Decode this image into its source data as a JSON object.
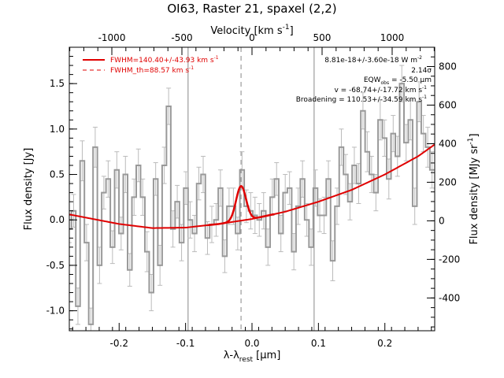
{
  "chart_data": {
    "type": "line",
    "title": "OI63, Raster 21, spaxel (2,2)",
    "xlabel": "λ-λ_rest [μm]",
    "xlabel_parts": {
      "lambda": "λ-λ",
      "sub": "rest",
      "unit": " [",
      "mu": "μ",
      "unit_end": "m]"
    },
    "ylabel_left": "Flux density [Jy]",
    "ylabel_right": "Flux density [MJy sr",
    "ylabel_right_sup": "-1",
    "ylabel_right_end": "]",
    "top_axis_label": "Velocity [km s",
    "top_axis_label_sup": "-1",
    "top_axis_label_end": "]",
    "xlim": [
      -0.275,
      0.275
    ],
    "ylim": [
      -1.22,
      1.9
    ],
    "right_ylim": [
      -570,
      900
    ],
    "vel_per_um": 4740,
    "x_ticks": [
      -0.2,
      -0.1,
      0.0,
      0.1,
      0.2
    ],
    "x_tick_labels": [
      "-0.2",
      "-0.1",
      "0.0",
      "0.1",
      "0.2"
    ],
    "y_ticks": [
      -1.0,
      -0.5,
      0.0,
      0.5,
      1.0,
      1.5
    ],
    "y_tick_labels": [
      "-1.0",
      "-0.5",
      "0.0",
      "0.5",
      "1.0",
      "1.5"
    ],
    "right_ticks": [
      -400,
      -200,
      0,
      200,
      400,
      600,
      800
    ],
    "right_tick_labels": [
      "-400",
      "-200",
      "0",
      "200",
      "400",
      "600",
      "800"
    ],
    "top_ticks": [
      -1000,
      -500,
      0,
      500,
      1000
    ],
    "top_tick_labels": [
      "-1000",
      "-500",
      "0",
      "500",
      "1000"
    ],
    "vlines": [
      -0.0962,
      0.0935
    ],
    "dashed_vline": -0.0165,
    "legend": {
      "position": "top-left",
      "entries": [
        {
          "label": "FWHM=140.40+/-43.93 km s",
          "sup": "-1",
          "style": "solid"
        },
        {
          "label": "FWHM_th=88.57 km s",
          "sup": "-1",
          "style": "dashed"
        }
      ]
    },
    "annotations": [
      "8.81e-18+/-3.60e-18 W m",
      "2.14σ",
      "EQW",
      " = -5.50 μm",
      "v = -68.74+/-17.72 km s",
      "Broadening = 110.53+/-34.59 km s"
    ],
    "annotation_sups": {
      "wm": "-2",
      "eqw_sub": "obs",
      "kms": "-1"
    },
    "continuum_fit": {
      "x": [
        -0.275,
        -0.2,
        -0.15,
        -0.1,
        -0.05,
        0.0,
        0.05,
        0.1,
        0.15,
        0.2,
        0.25,
        0.275
      ],
      "y": [
        0.06,
        -0.045,
        -0.09,
        -0.085,
        -0.045,
        0.01,
        0.09,
        0.2,
        0.33,
        0.5,
        0.7,
        0.83
      ]
    },
    "line_fit": {
      "center": -0.0165,
      "amplitude": 0.38,
      "sigma": 0.0075
    },
    "spectrum": {
      "x": [
        -0.275,
        -0.2685,
        -0.262,
        -0.2555,
        -0.249,
        -0.2425,
        -0.236,
        -0.2295,
        -0.223,
        -0.2165,
        -0.21,
        -0.2035,
        -0.197,
        -0.1905,
        -0.184,
        -0.1775,
        -0.171,
        -0.1645,
        -0.158,
        -0.1515,
        -0.145,
        -0.1385,
        -0.132,
        -0.1255,
        -0.119,
        -0.1125,
        -0.106,
        -0.0995,
        -0.093,
        -0.0865,
        -0.08,
        -0.0735,
        -0.067,
        -0.0605,
        -0.054,
        -0.0475,
        -0.041,
        -0.0345,
        -0.028,
        -0.0215,
        -0.015,
        -0.0085,
        -0.002,
        0.0045,
        0.011,
        0.0175,
        0.024,
        0.0305,
        0.037,
        0.0435,
        0.05,
        0.0565,
        0.063,
        0.0695,
        0.076,
        0.0825,
        0.089,
        0.0955,
        0.102,
        0.1085,
        0.115,
        0.1215,
        0.128,
        0.1345,
        0.141,
        0.1475,
        0.154,
        0.1605,
        0.167,
        0.1735,
        0.18,
        0.1865,
        0.193,
        0.1995,
        0.206,
        0.2125,
        0.219,
        0.2255,
        0.232,
        0.2385,
        0.245,
        0.2515,
        0.258,
        0.2645,
        0.271
      ],
      "y": [
        -0.1,
        0.1,
        -0.95,
        0.65,
        -0.25,
        -1.15,
        0.8,
        -0.5,
        0.3,
        0.45,
        -0.3,
        0.55,
        -0.15,
        0.5,
        -0.55,
        0.25,
        0.6,
        0.25,
        -0.35,
        -0.8,
        0.45,
        -0.5,
        0.6,
        1.25,
        -0.1,
        0.2,
        -0.25,
        0.35,
        0.0,
        -0.15,
        0.4,
        0.5,
        -0.2,
        -0.05,
        0.0,
        0.35,
        -0.4,
        0.15,
        0.15,
        -0.15,
        0.55,
        0.15,
        0.1,
        0.05,
        0.0,
        0.1,
        -0.3,
        0.25,
        0.45,
        -0.15,
        0.3,
        0.35,
        -0.35,
        0.15,
        0.45,
        0.0,
        -0.3,
        0.35,
        0.05,
        0.05,
        0.45,
        -0.45,
        0.15,
        0.8,
        0.5,
        0.2,
        0.6,
        0.4,
        1.2,
        0.75,
        0.5,
        0.3,
        1.1,
        0.9,
        0.45,
        0.95,
        0.7,
        1.5,
        0.85,
        1.1,
        0.15,
        1.3,
        0.95,
        0.8,
        0.55
      ],
      "err": [
        0.15,
        0.18,
        0.2,
        0.22,
        0.2,
        0.18,
        0.22,
        0.2,
        0.18,
        0.2,
        0.18,
        0.2,
        0.18,
        0.2,
        0.18,
        0.2,
        0.18,
        0.2,
        0.22,
        0.2,
        0.18,
        0.22,
        0.2,
        0.2,
        0.2,
        0.18,
        0.2,
        0.18,
        0.2,
        0.2,
        0.18,
        0.2,
        0.18,
        0.2,
        0.18,
        0.2,
        0.18,
        0.2,
        0.2,
        0.18,
        0.2,
        0.18,
        0.2,
        0.2,
        0.18,
        0.2,
        0.2,
        0.2,
        0.18,
        0.2,
        0.2,
        0.18,
        0.2,
        0.2,
        0.2,
        0.18,
        0.2,
        0.2,
        0.18,
        0.2,
        0.2,
        0.22,
        0.2,
        0.2,
        0.22,
        0.2,
        0.2,
        0.22,
        0.2,
        0.22,
        0.2,
        0.2,
        0.22,
        0.2,
        0.22,
        0.2,
        0.22,
        0.2,
        0.2,
        0.22,
        0.2,
        0.22,
        0.2,
        0.22,
        0.2
      ]
    }
  }
}
